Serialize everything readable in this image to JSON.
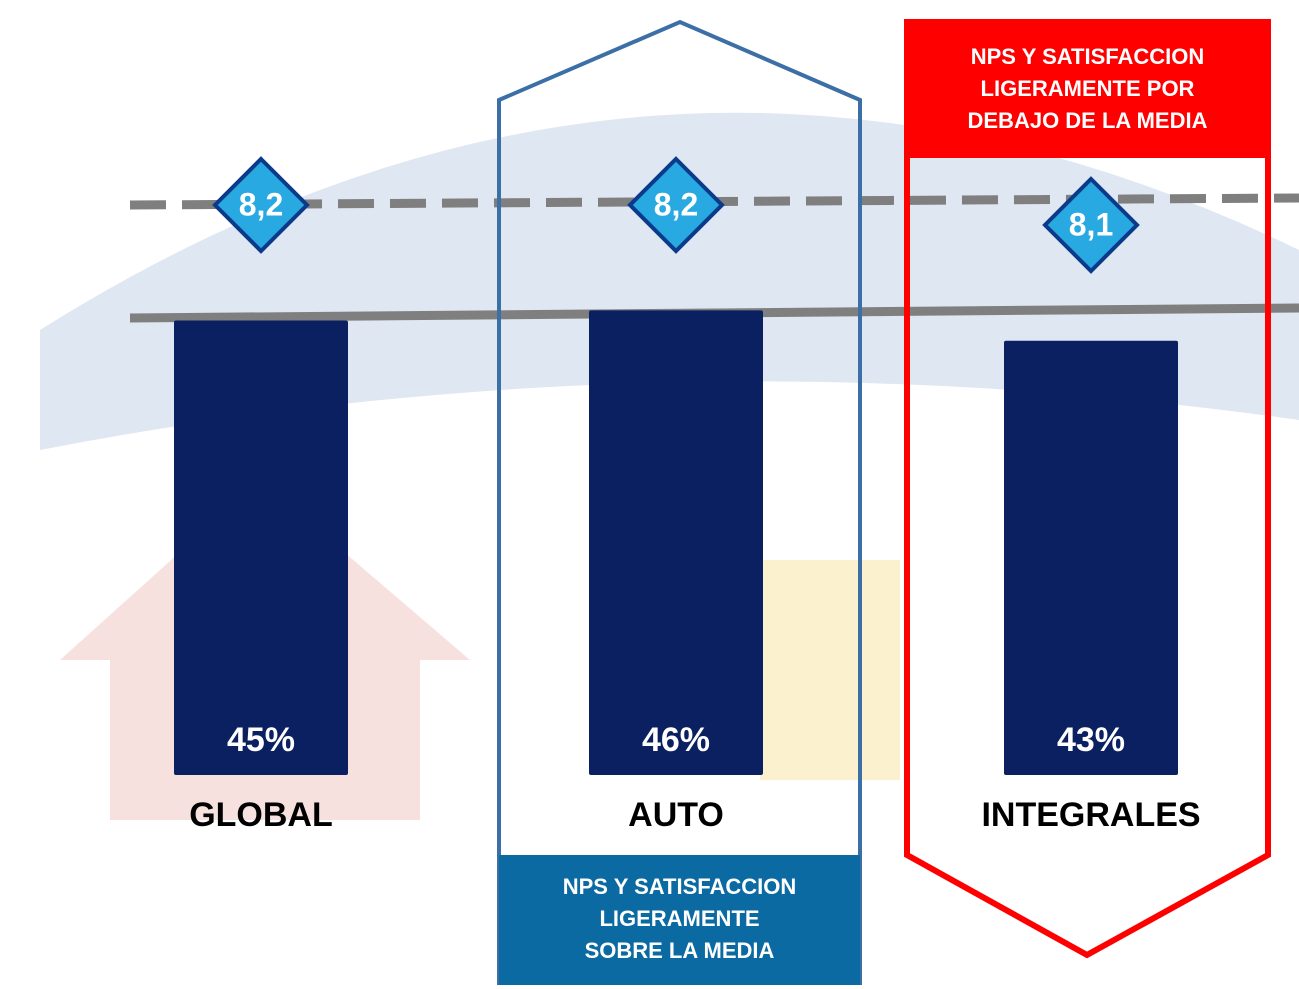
{
  "chart_data": {
    "type": "bar",
    "categories": [
      "GLOBAL",
      "AUTO",
      "INTEGRALES"
    ],
    "values": [
      45,
      46,
      43
    ],
    "value_labels": [
      "45%",
      "46%",
      "43%"
    ],
    "color": "#0a2060",
    "markers": {
      "values": [
        8.2,
        8.2,
        8.1
      ],
      "value_labels": [
        "8,2",
        "8,2",
        "8,1"
      ],
      "color": "#29a9e1"
    },
    "annotations": [
      {
        "lines": [
          "NPS Y SATISFACCION",
          "LIGERAMENTE",
          "SOBRE LA MEDIA"
        ],
        "color": "#0b6aa2"
      },
      {
        "lines": [
          "NPS Y SATISFACCION",
          "LIGERAMENTE POR",
          "DEBAJO DE LA MEDIA"
        ],
        "color": "#ff0000"
      }
    ]
  }
}
